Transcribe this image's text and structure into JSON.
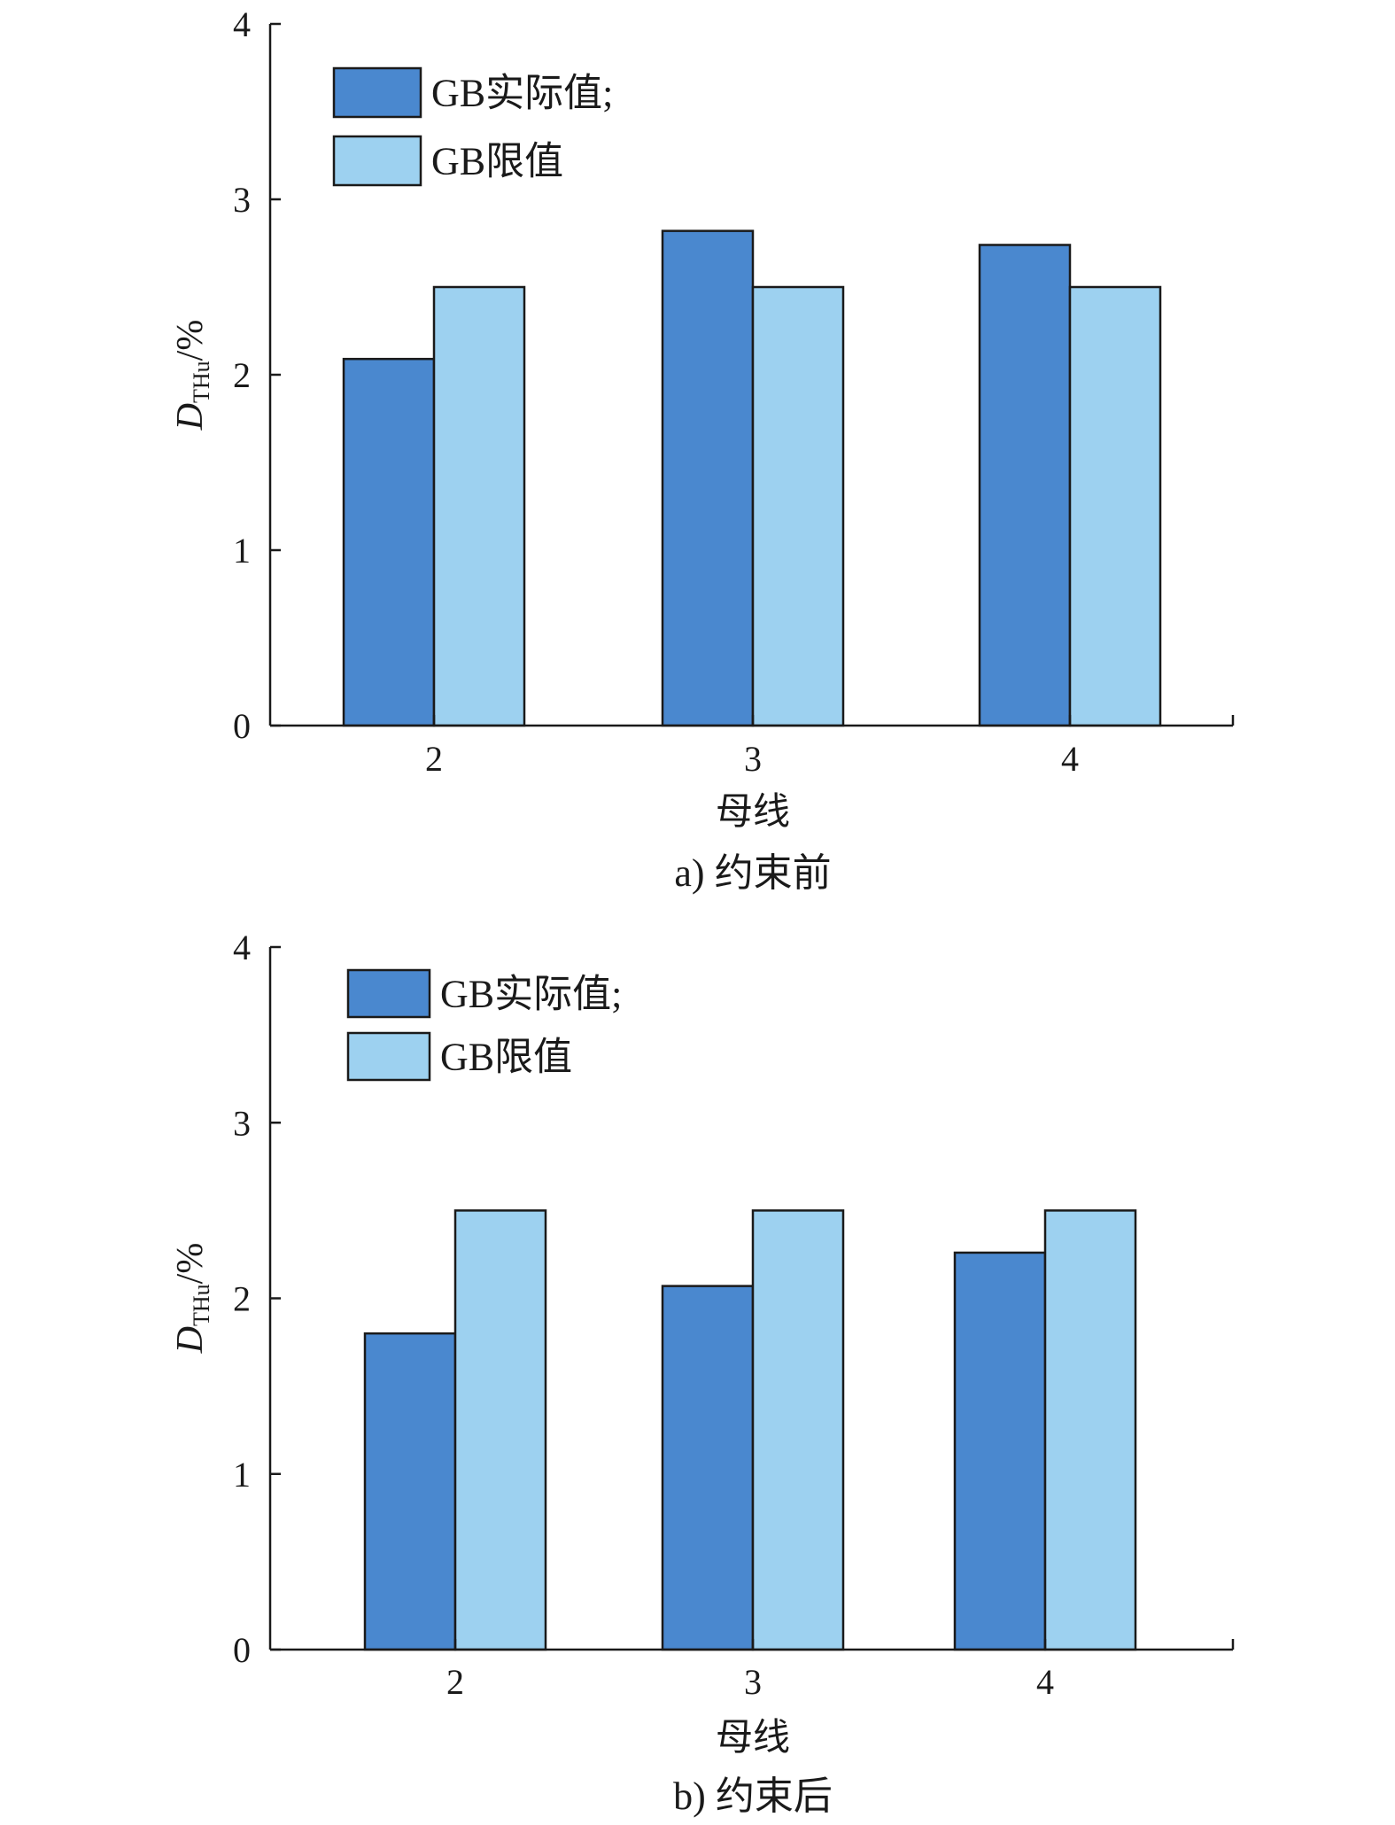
{
  "colors": {
    "actual": "#4a88cf",
    "limit": "#9dd1f0",
    "axis": "#1a1a1a",
    "bar_edge": "#1a1a1a"
  },
  "chart_data": [
    {
      "type": "bar",
      "caption": "a) 约束前",
      "categories": [
        "2",
        "3",
        "4"
      ],
      "xlabel": "母线",
      "ylabel": {
        "main": "D",
        "sub": "THu",
        "unit": "/%"
      },
      "ylim": [
        0,
        4
      ],
      "yticks": [
        "0",
        "1",
        "2",
        "3",
        "4"
      ],
      "legend_position": "top-left",
      "series": [
        {
          "name": "GB实际值;",
          "values": [
            2.09,
            2.82,
            2.74
          ]
        },
        {
          "name": "GB限值",
          "values": [
            2.5,
            2.5,
            2.5
          ]
        }
      ]
    },
    {
      "type": "bar",
      "caption": "b) 约束后",
      "categories": [
        "2",
        "3",
        "4"
      ],
      "xlabel": "母线",
      "ylabel": {
        "main": "D",
        "sub": "THu",
        "unit": "/%"
      },
      "ylim": [
        0,
        4
      ],
      "yticks": [
        "0",
        "1",
        "2",
        "3",
        "4"
      ],
      "legend_position": "top-left",
      "series": [
        {
          "name": "GB实际值;",
          "values": [
            1.8,
            2.07,
            2.26
          ]
        },
        {
          "name": "GB限值",
          "values": [
            2.5,
            2.5,
            2.5
          ]
        }
      ]
    }
  ]
}
